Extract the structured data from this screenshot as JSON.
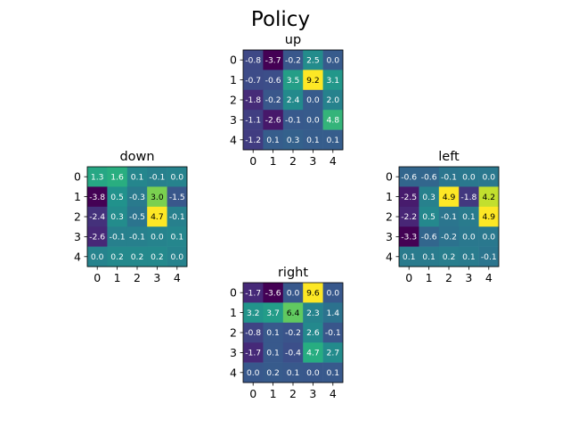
{
  "chart_data": {
    "type": "heatmap",
    "title": "Policy",
    "colormap": "viridis",
    "tick_labels": [
      "0",
      "1",
      "2",
      "3",
      "4"
    ],
    "panels": [
      {
        "name": "up",
        "values": [
          [
            -0.8,
            -3.7,
            -0.2,
            2.5,
            0.0
          ],
          [
            -0.7,
            -0.6,
            3.5,
            9.2,
            3.1
          ],
          [
            -1.8,
            -0.2,
            2.4,
            0.0,
            2.0
          ],
          [
            -1.1,
            -2.6,
            -0.1,
            -0.0,
            4.8
          ],
          [
            -1.2,
            0.1,
            0.3,
            0.1,
            0.1
          ]
        ]
      },
      {
        "name": "down",
        "values": [
          [
            1.3,
            1.6,
            0.1,
            -0.1,
            0.0
          ],
          [
            -3.8,
            0.5,
            -0.3,
            3.0,
            -1.5
          ],
          [
            -2.4,
            0.3,
            -0.5,
            4.7,
            -0.1
          ],
          [
            -2.6,
            -0.1,
            -0.1,
            0.0,
            0.1
          ],
          [
            -0.0,
            0.2,
            0.2,
            0.2,
            0.0
          ]
        ]
      },
      {
        "name": "left",
        "values": [
          [
            -0.6,
            -0.6,
            -0.1,
            0.0,
            0.0
          ],
          [
            -2.5,
            0.3,
            4.9,
            -1.8,
            4.2
          ],
          [
            -2.2,
            0.5,
            -0.1,
            0.1,
            4.9
          ],
          [
            -3.3,
            -0.6,
            -0.2,
            -0.0,
            0.0
          ],
          [
            0.1,
            0.1,
            0.2,
            0.1,
            -0.1
          ]
        ]
      },
      {
        "name": "right",
        "values": [
          [
            -1.7,
            -3.6,
            0.0,
            9.6,
            0.0
          ],
          [
            3.2,
            3.7,
            6.4,
            2.3,
            1.4
          ],
          [
            -0.8,
            0.1,
            -0.2,
            2.6,
            -0.1
          ],
          [
            -1.7,
            0.1,
            -0.4,
            4.7,
            2.7
          ],
          [
            0.0,
            0.2,
            0.1,
            0.0,
            0.1
          ]
        ]
      }
    ]
  }
}
